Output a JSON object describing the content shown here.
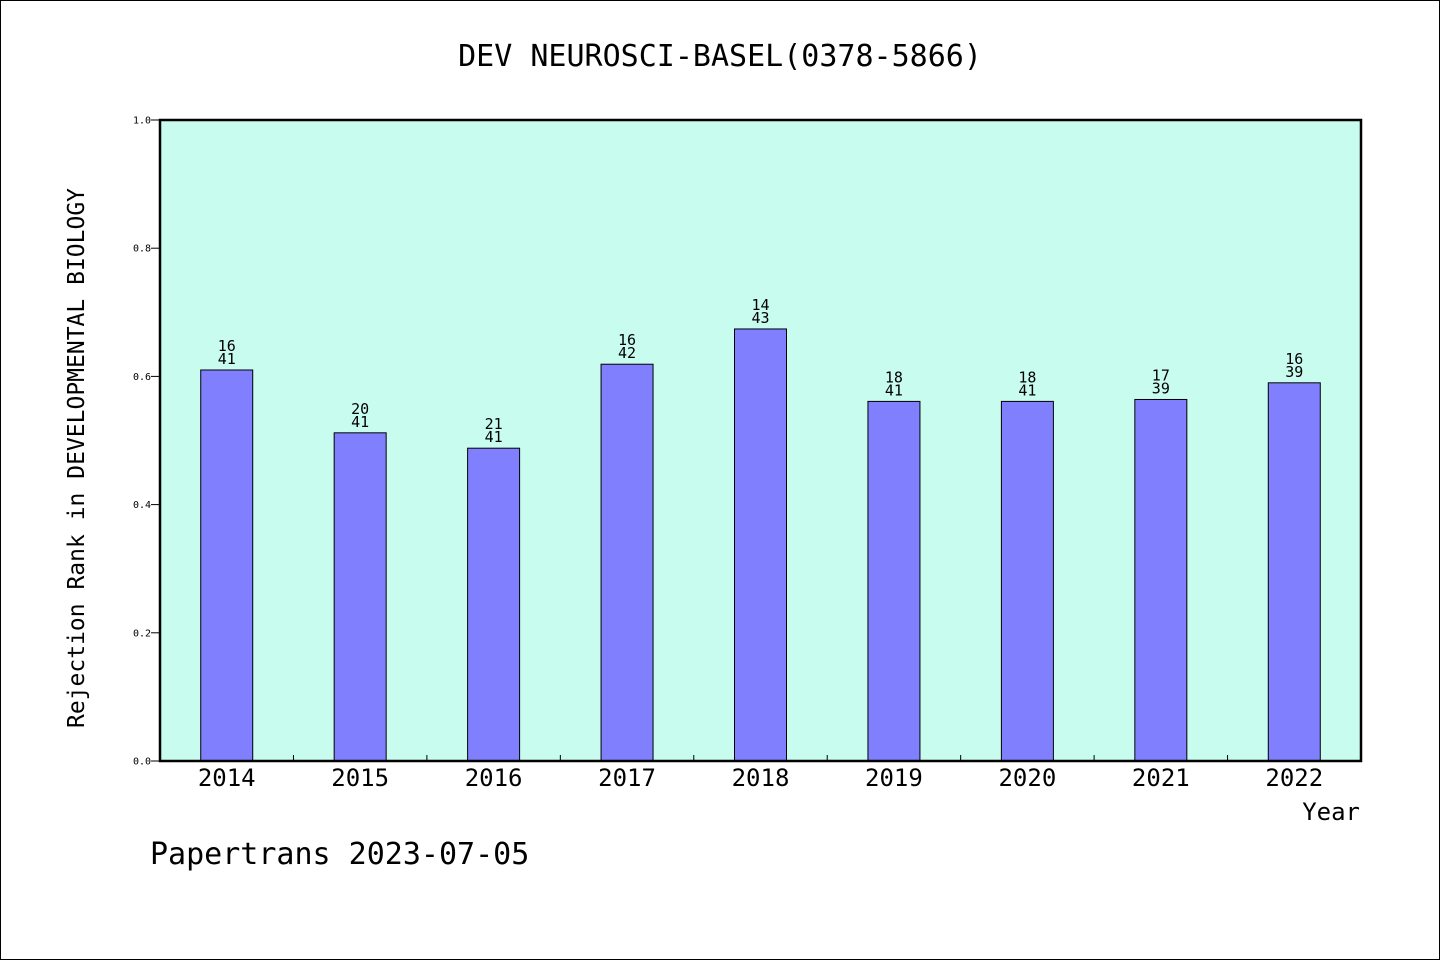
{
  "chart_data": {
    "type": "bar",
    "title": "DEV NEUROSCI-BASEL(0378-5866)",
    "xlabel": "Year",
    "ylabel": "Rejection Rank in DEVELOPMENTAL BIOLOGY",
    "ylim": [
      0,
      1.0
    ],
    "yticks": [
      "0.0",
      "0.2",
      "0.4",
      "0.6",
      "0.8",
      "1.0"
    ],
    "categories": [
      "2014",
      "2015",
      "2016",
      "2017",
      "2018",
      "2019",
      "2020",
      "2021",
      "2022"
    ],
    "values": [
      0.61,
      0.512,
      0.488,
      0.619,
      0.674,
      0.561,
      0.561,
      0.564,
      0.59
    ],
    "ranks": [
      "16",
      "20",
      "21",
      "16",
      "14",
      "18",
      "18",
      "17",
      "16"
    ],
    "totals": [
      "41",
      "41",
      "41",
      "42",
      "43",
      "41",
      "41",
      "39",
      "39"
    ],
    "grid": false,
    "colors": {
      "plot_bg": "#c8fcee",
      "bar": "#8080ff",
      "axis": "#000000"
    }
  },
  "footer": {
    "text": "Papertrans 2023-07-05"
  }
}
